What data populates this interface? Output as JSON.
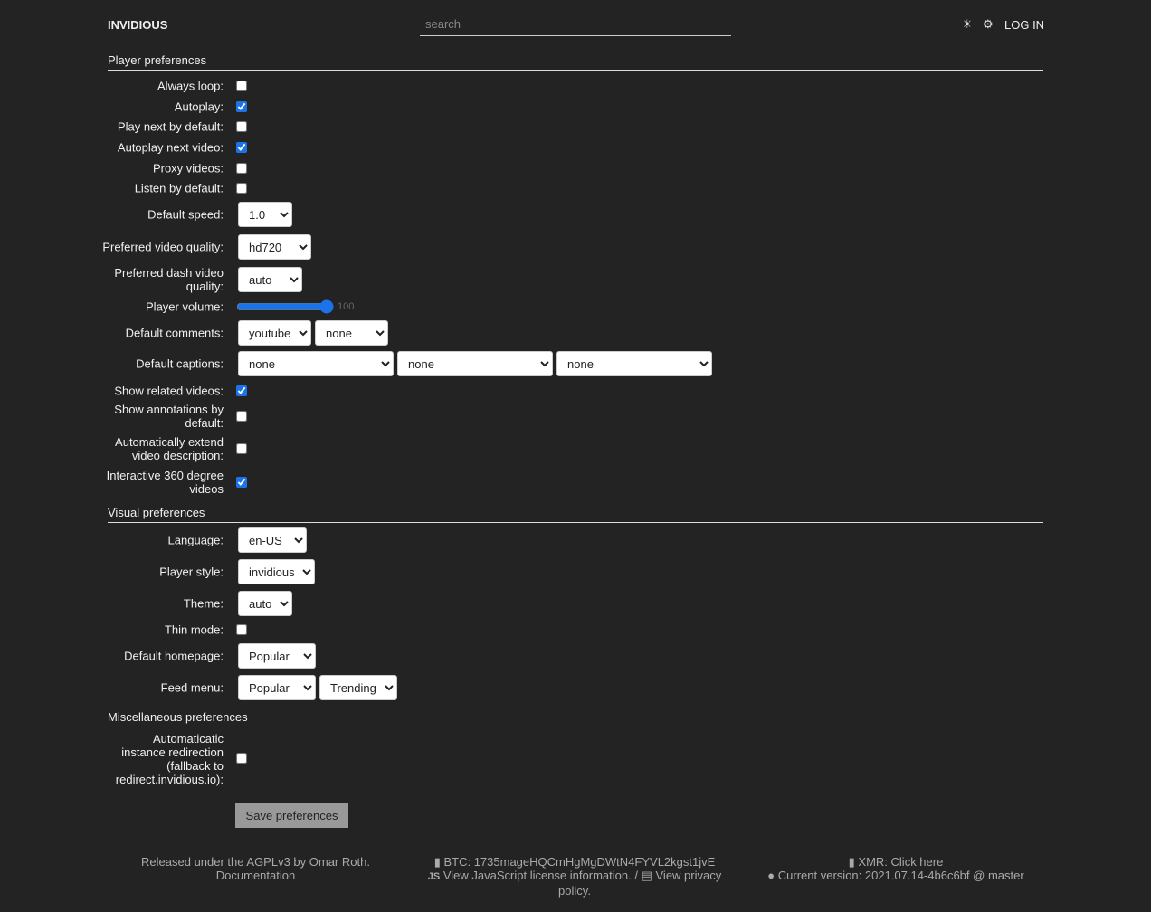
{
  "header": {
    "brand": "INVIDIOUS",
    "search_placeholder": "search",
    "theme_icon": "☀",
    "settings_icon": "⚙",
    "login": "LOG IN"
  },
  "player": {
    "title": "Player preferences",
    "always_loop": {
      "label": "Always loop:",
      "checked": false
    },
    "autoplay": {
      "label": "Autoplay:",
      "checked": true
    },
    "play_next": {
      "label": "Play next by default:",
      "checked": false
    },
    "autoplay_next": {
      "label": "Autoplay next video:",
      "checked": true
    },
    "proxy": {
      "label": "Proxy videos:",
      "checked": false
    },
    "listen": {
      "label": "Listen by default:",
      "checked": false
    },
    "speed": {
      "label": "Default speed:",
      "value": "1.0"
    },
    "quality": {
      "label": "Preferred video quality:",
      "value": "hd720"
    },
    "dash_quality": {
      "label": "Preferred dash video quality:",
      "value": "auto"
    },
    "volume": {
      "label": "Player volume:",
      "value": 100
    },
    "comments": {
      "label": "Default comments:",
      "values": [
        "youtube",
        "none"
      ]
    },
    "captions": {
      "label": "Default captions:",
      "values": [
        "none",
        "none",
        "none"
      ]
    },
    "related": {
      "label": "Show related videos:",
      "checked": true
    },
    "annotations": {
      "label": "Show annotations by default:",
      "checked": false
    },
    "extend_desc": {
      "label": "Automatically extend video description:",
      "checked": false
    },
    "vr360": {
      "label": "Interactive 360 degree videos",
      "checked": true
    }
  },
  "visual": {
    "title": "Visual preferences",
    "language": {
      "label": "Language:",
      "value": "en-US"
    },
    "player_style": {
      "label": "Player style:",
      "value": "invidious"
    },
    "theme": {
      "label": "Theme:",
      "value": "auto"
    },
    "thin_mode": {
      "label": "Thin mode:",
      "checked": false
    },
    "homepage": {
      "label": "Default homepage:",
      "value": "Popular"
    },
    "feed_menu": {
      "label": "Feed menu:",
      "values": [
        "Popular",
        "Trending"
      ]
    }
  },
  "misc": {
    "title": "Miscellaneous preferences",
    "redirect": {
      "label": "Automaticatic instance redirection (fallback to redirect.invidious.io):",
      "checked": false
    }
  },
  "save_label": "Save preferences",
  "footer": {
    "released": "Released under the AGPLv3 by Omar Roth.",
    "documentation": "Documentation",
    "btc": "BTC: 1735mageHQCmHgMgDWtN4FYVL2kgst1jvE",
    "js_license": "View JavaScript license information.",
    "separator": "/",
    "privacy": "View privacy policy.",
    "xmr": "XMR: Click here",
    "version": "Current version: 2021.07.14-4b6c6bf @ master"
  },
  "colors": {
    "background": "#232323",
    "accent": "#1a73e8"
  }
}
